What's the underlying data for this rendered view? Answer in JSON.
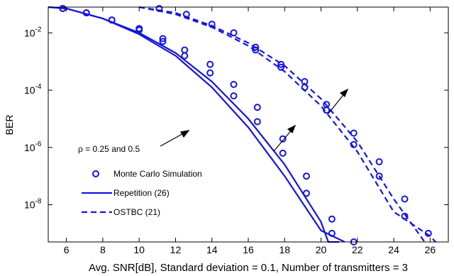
{
  "chart_data": {
    "type": "line",
    "xlabel": "Avg. SNR[dB], Standard deviation = 0.1, Number of transmitters = 3",
    "ylabel": "BER",
    "y_scale": "log",
    "xlim": [
      5,
      27
    ],
    "ylim_exponent": [
      -9.3,
      -1.1
    ],
    "x_ticks": [
      6,
      8,
      10,
      12,
      14,
      16,
      18,
      20,
      22,
      24,
      26
    ],
    "y_ticks": [
      {
        "exp": -2,
        "base": "10",
        "sup": "-2"
      },
      {
        "exp": -4,
        "base": "10",
        "sup": "-4"
      },
      {
        "exp": -6,
        "base": "10",
        "sup": "-6"
      },
      {
        "exp": -8,
        "base": "10",
        "sup": "-8"
      }
    ],
    "grid": false,
    "legend_position": "bottom-left",
    "legend": [
      {
        "label": "Monte Carlo Simulation",
        "style": "marker"
      },
      {
        "label": "Repetition (26)",
        "style": "solid"
      },
      {
        "label": "OSTBC (21)",
        "style": "dashed"
      }
    ],
    "annotation": {
      "text": "ρ = 0.25 and 0.5"
    },
    "series": [
      {
        "style": "solid",
        "x": [
          5,
          6,
          8,
          10,
          12,
          14,
          16,
          18,
          20,
          20.4,
          21
        ],
        "log10_y": [
          -1.1,
          -1.15,
          -1.5,
          -2.0,
          -2.7,
          -3.7,
          -5.0,
          -6.6,
          -8.6,
          -9.3,
          -9.3
        ]
      },
      {
        "style": "solid",
        "x": [
          5,
          6,
          8,
          10,
          12,
          14,
          16,
          18,
          20,
          21.3
        ],
        "log10_y": [
          -1.1,
          -1.15,
          -1.5,
          -2.05,
          -2.8,
          -3.9,
          -5.3,
          -7.0,
          -8.9,
          -9.3
        ]
      },
      {
        "style": "dashed",
        "x": [
          10,
          12,
          14,
          16,
          18,
          20,
          22,
          24,
          25.7
        ],
        "log10_y": [
          -1.1,
          -1.3,
          -1.75,
          -2.35,
          -3.15,
          -4.3,
          -5.8,
          -7.8,
          -9.3
        ]
      },
      {
        "style": "dashed",
        "x": [
          10,
          12,
          14,
          16,
          18,
          20,
          22,
          24,
          26,
          26.3
        ],
        "log10_y": [
          -1.1,
          -1.35,
          -1.8,
          -2.45,
          -3.35,
          -4.55,
          -6.15,
          -8.25,
          -9.1,
          -9.3
        ]
      }
    ],
    "markers": {
      "x": [
        5.8,
        7.1,
        8.5,
        10,
        11.3,
        12.5,
        13.9,
        15.2,
        16.5,
        17.9,
        19.2,
        20.6,
        21.8,
        5.8,
        7.1,
        8.5,
        10,
        11.3,
        12.5,
        13.9,
        15.2,
        16.5,
        17.9,
        19.2,
        20.6,
        11.1,
        12.6,
        14,
        15.2,
        16.4,
        17.8,
        19.1,
        20.3,
        21.8,
        23.2,
        24.6,
        25.9,
        16.4,
        17.8,
        19.1,
        20.3,
        21.8,
        23.2,
        24.6
      ],
      "log10_y": [
        -1.15,
        -1.3,
        -1.55,
        -1.85,
        -2.2,
        -2.6,
        -3.1,
        -3.8,
        -4.6,
        -5.7,
        -7.0,
        -8.5,
        -9.3,
        -1.15,
        -1.3,
        -1.55,
        -1.9,
        -2.3,
        -2.8,
        -3.4,
        -4.2,
        -5.1,
        -6.2,
        -7.6,
        -9.0,
        -1.15,
        -1.35,
        -1.7,
        -2.0,
        -2.5,
        -3.1,
        -3.7,
        -4.5,
        -5.5,
        -6.5,
        -7.8,
        -9.0,
        -2.6,
        -3.2,
        -3.9,
        -4.7,
        -5.9,
        -7.0,
        -8.4
      ]
    }
  }
}
